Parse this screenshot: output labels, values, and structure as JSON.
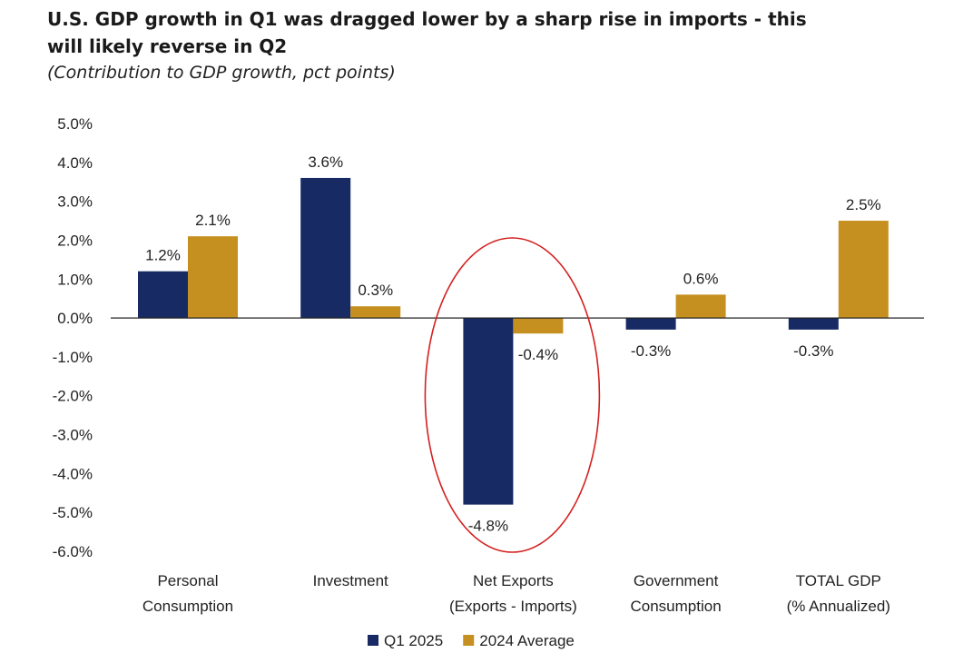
{
  "header": {
    "title_line1": "U.S. GDP growth in Q1 was dragged lower by a sharp rise in imports - this",
    "title_line2": "will likely reverse in Q2",
    "subtitle": "(Contribution to GDP growth, pct points)"
  },
  "chart_data": {
    "type": "bar",
    "categories": [
      [
        "Personal",
        "Consumption"
      ],
      [
        "Investment"
      ],
      [
        "Net Exports",
        "(Exports - Imports)"
      ],
      [
        "Government",
        "Consumption"
      ],
      [
        "TOTAL GDP",
        "(% Annualized)"
      ]
    ],
    "series": [
      {
        "name": "Q1 2025",
        "values": [
          1.2,
          3.6,
          -4.8,
          -0.3,
          -0.3
        ],
        "labels": [
          "1.2%",
          "3.6%",
          "-4.8%",
          "-0.3%",
          "-0.3%"
        ],
        "color": "#172a64"
      },
      {
        "name": "2024 Average",
        "values": [
          2.1,
          0.3,
          -0.4,
          0.6,
          2.5
        ],
        "labels": [
          "2.1%",
          "0.3%",
          "-0.4%",
          "0.6%",
          "2.5%"
        ],
        "color": "#c5901f"
      }
    ],
    "ylim": [
      -6,
      5
    ],
    "yticks": [
      5,
      4,
      3,
      2,
      1,
      0,
      -1,
      -2,
      -3,
      -4,
      -5,
      -6
    ],
    "ytick_labels": [
      "5.0%",
      "4.0%",
      "3.0%",
      "2.0%",
      "1.0%",
      "0.0%",
      "-1.0%",
      "-2.0%",
      "-3.0%",
      "-4.0%",
      "-5.0%",
      "-6.0%"
    ],
    "grid": false,
    "legend_position": "bottom-center",
    "annotation": {
      "shape": "ellipse",
      "color": "#d42020",
      "highlights": "Net Exports (Exports - Imports)"
    }
  }
}
